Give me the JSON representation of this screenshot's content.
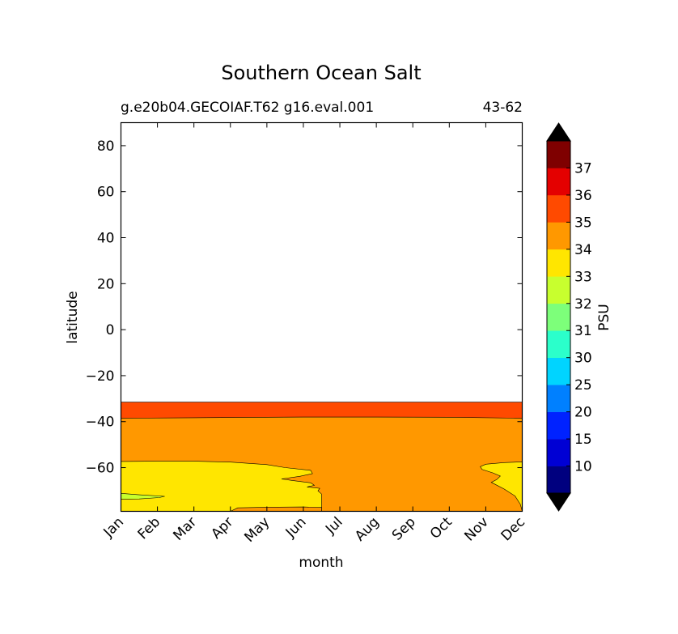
{
  "chart_data": {
    "type": "contour",
    "title": "Southern Ocean Salt",
    "subtitle_left": "g.e20b04.GECOIAF.T62 g16.eval.001",
    "subtitle_right": "43-62",
    "xlabel": "month",
    "ylabel": "latitude",
    "categories": [
      "Jan",
      "Feb",
      "Mar",
      "Apr",
      "May",
      "Jun",
      "Jul",
      "Aug",
      "Sep",
      "Oct",
      "Nov",
      "Dec"
    ],
    "xlim": [
      0,
      11
    ],
    "ylim": [
      -79,
      90
    ],
    "yticks": [
      80,
      60,
      40,
      20,
      0,
      -20,
      -40,
      -60
    ],
    "ytick_labels": [
      "80",
      "60",
      "40",
      "20",
      "0",
      "−20",
      "−40",
      "−60"
    ],
    "colorbar": {
      "label": "PSU",
      "tick_labels": [
        "10",
        "15",
        "20",
        "25",
        "30",
        "31",
        "32",
        "33",
        "34",
        "35",
        "36",
        "37"
      ],
      "colors": [
        "#00007f",
        "#0000d4",
        "#0022ff",
        "#0080ff",
        "#00d4ff",
        "#2bffcb",
        "#7dff7a",
        "#c8ff2e",
        "#ffe600",
        "#ff9800",
        "#ff4a00",
        "#e40000",
        "#7f0000"
      ],
      "extend": "both",
      "under_color": "#000000",
      "over_color": "#000000"
    },
    "regions": [
      {
        "level": "35-36",
        "color": "#ff4a00",
        "points": [
          [
            0,
            -31.5
          ],
          [
            11,
            -31.5
          ],
          [
            11,
            -38.5
          ],
          [
            0,
            -38.5
          ]
        ]
      },
      {
        "level": "34-35",
        "color": "#ff9800",
        "points": [
          [
            0,
            -38.5
          ],
          [
            2,
            -38.3
          ],
          [
            4,
            -38.1
          ],
          [
            5,
            -38
          ],
          [
            7,
            -38
          ],
          [
            9,
            -38.1
          ],
          [
            11,
            -38.5
          ],
          [
            11,
            -79
          ],
          [
            0,
            -79
          ]
        ]
      },
      {
        "level": "33-34",
        "color": "#ffe600",
        "points": [
          [
            0,
            -57.3
          ],
          [
            1,
            -57.2
          ],
          [
            2,
            -57.2
          ],
          [
            3,
            -57.6
          ],
          [
            4,
            -58.7
          ],
          [
            4.5,
            -60
          ],
          [
            5.2,
            -61.2
          ],
          [
            5.25,
            -62.6
          ],
          [
            4.9,
            -63.8
          ],
          [
            4.4,
            -64.9
          ],
          [
            4.7,
            -65.6
          ],
          [
            5.2,
            -66.6
          ],
          [
            5.3,
            -67.7
          ],
          [
            5.1,
            -68.4
          ],
          [
            5.45,
            -69
          ],
          [
            5.4,
            -70.1
          ],
          [
            5.5,
            -71.5
          ],
          [
            5.5,
            -79
          ],
          [
            0,
            -79
          ]
        ]
      },
      {
        "level": "34-35 patch",
        "color": "#ff9800",
        "points": [
          [
            3.2,
            -77.5
          ],
          [
            4,
            -77.2
          ],
          [
            5,
            -77.1
          ],
          [
            5.5,
            -77.3
          ],
          [
            5.5,
            -79
          ],
          [
            3,
            -79
          ]
        ]
      },
      {
        "level": "33-34 east",
        "color": "#ffe600",
        "points": [
          [
            11,
            -57.5
          ],
          [
            10.5,
            -57.8
          ],
          [
            10,
            -58.5
          ],
          [
            9.85,
            -59.6
          ],
          [
            9.9,
            -60.8
          ],
          [
            10.2,
            -62.3
          ],
          [
            10.4,
            -63.7
          ],
          [
            10.3,
            -65.2
          ],
          [
            10.15,
            -66.4
          ],
          [
            10.5,
            -69.3
          ],
          [
            10.8,
            -72.3
          ],
          [
            10.95,
            -76
          ],
          [
            11,
            -79
          ]
        ]
      },
      {
        "level": "32-33",
        "color": "#c8ff2e",
        "points": [
          [
            0,
            -71.2
          ],
          [
            0.5,
            -71.8
          ],
          [
            1.2,
            -72.5
          ],
          [
            1.05,
            -73
          ],
          [
            0.5,
            -73.6
          ],
          [
            0,
            -73.7
          ]
        ]
      }
    ]
  }
}
